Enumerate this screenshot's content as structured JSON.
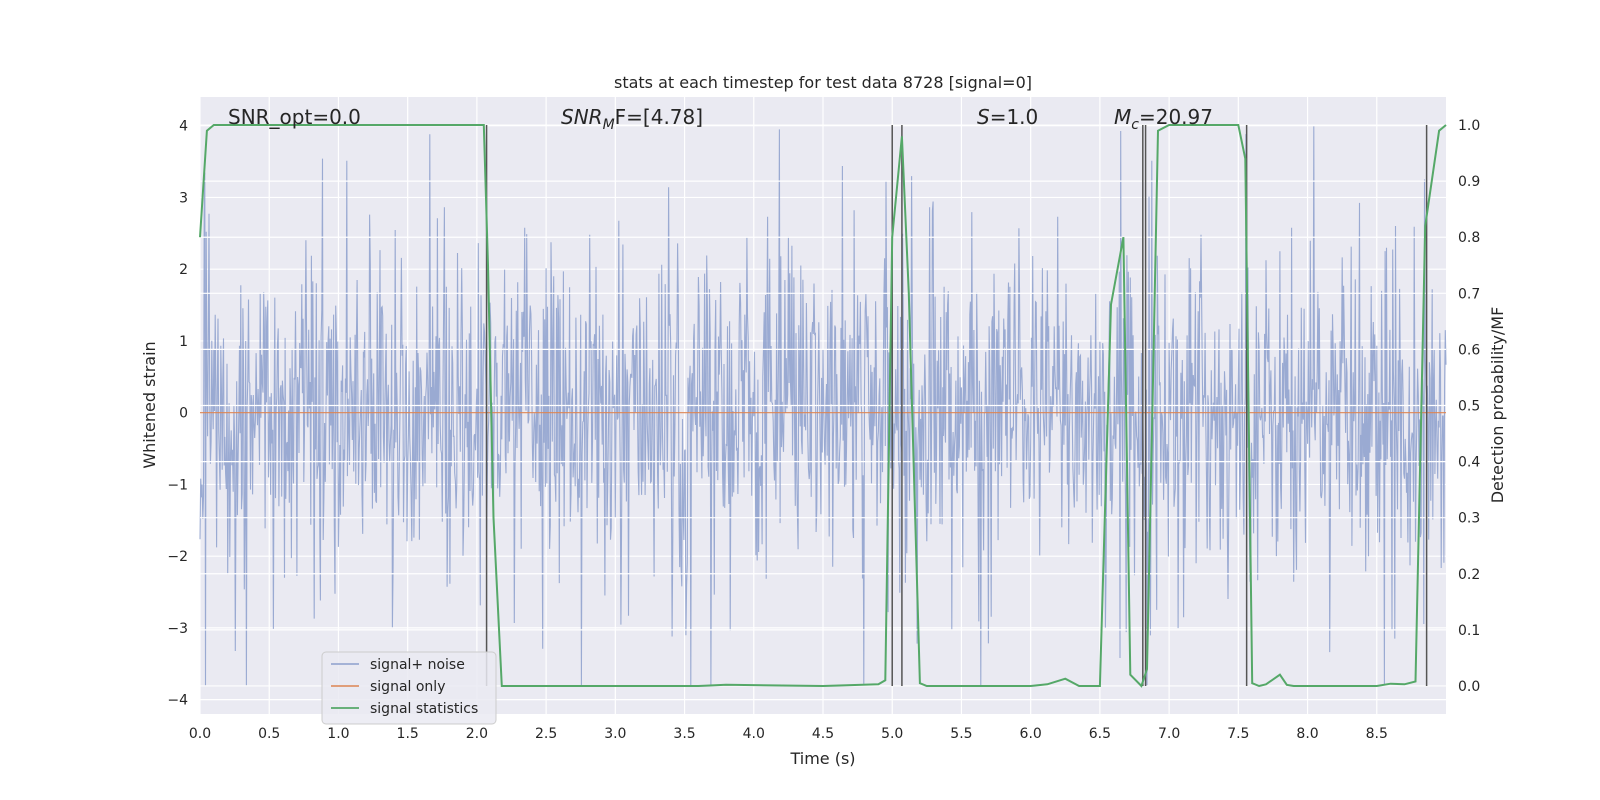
{
  "chart_data": {
    "type": "line",
    "title": "stats at each timestep for test data 8728 [signal=0]",
    "xlabel": "Time (s)",
    "ylabel": "Whitened strain",
    "y2label": "Detection probability/MF",
    "xlim": [
      0.0,
      9.0
    ],
    "ylim": [
      -4.2,
      4.4
    ],
    "y2lim": [
      -0.05,
      1.05
    ],
    "xticks": [
      "0.0",
      "0.5",
      "1.0",
      "1.5",
      "2.0",
      "2.5",
      "3.0",
      "3.5",
      "4.0",
      "4.5",
      "5.0",
      "5.5",
      "6.0",
      "6.5",
      "7.0",
      "7.5",
      "8.0",
      "8.5"
    ],
    "yticks": [
      "4",
      "3",
      "2",
      "1",
      "0",
      "−1",
      "−2",
      "−3",
      "−4"
    ],
    "y2ticks": [
      "1.0",
      "0.9",
      "0.8",
      "0.7",
      "0.6",
      "0.5",
      "0.4",
      "0.3",
      "0.2",
      "0.1",
      "0.0"
    ],
    "grid": true,
    "legend": {
      "position": "lower-left",
      "entries": [
        "signal+ noise",
        "signal only",
        "signal statistics"
      ]
    },
    "colors": {
      "noise": "#8c9fcc",
      "signal": "#dd8452",
      "stats": "#55a868",
      "vline": "#555555",
      "background": "#eaeaf2"
    },
    "annotations": {
      "snr_opt": "SNR_opt=0.0",
      "snr_mf_main": "SNR",
      "snr_mf_sub": "M",
      "snr_mf_rest": "F=[4.78]",
      "s_main": "S",
      "s_rest": "=1.0",
      "mc_main": "M",
      "mc_sub": "c",
      "mc_rest": "=20.97"
    },
    "series": [
      {
        "name": "signal statistics",
        "axis": "right",
        "x": [
          0.0,
          0.05,
          0.1,
          0.2,
          0.3,
          0.5,
          1.0,
          1.5,
          2.0,
          2.05,
          2.08,
          2.12,
          2.18,
          2.3,
          3.0,
          3.6,
          3.8,
          4.5,
          4.9,
          4.95,
          5.0,
          5.07,
          5.12,
          5.2,
          5.25,
          5.5,
          6.0,
          6.12,
          6.25,
          6.35,
          6.5,
          6.58,
          6.67,
          6.72,
          6.8,
          6.84,
          6.88,
          6.92,
          7.0,
          7.5,
          7.55,
          7.6,
          7.65,
          7.7,
          7.8,
          7.85,
          7.9,
          8.5,
          8.6,
          8.7,
          8.78,
          8.85,
          8.95,
          9.0
        ],
        "y": [
          0.8,
          0.99,
          1.0,
          1.0,
          1.0,
          1.0,
          1.0,
          1.0,
          1.0,
          1.0,
          0.75,
          0.3,
          0.0,
          0.0,
          0.0,
          0.0,
          0.002,
          0.0,
          0.003,
          0.01,
          0.8,
          0.98,
          0.7,
          0.005,
          0.0,
          0.0,
          0.0,
          0.003,
          0.013,
          0.0,
          0.0,
          0.68,
          0.8,
          0.02,
          0.0,
          0.03,
          0.5,
          0.99,
          1.0,
          1.0,
          0.94,
          0.005,
          0.0,
          0.003,
          0.02,
          0.002,
          0.0,
          0.0,
          0.004,
          0.003,
          0.008,
          0.82,
          0.99,
          1.0
        ]
      },
      {
        "name": "signal only",
        "axis": "left",
        "x": [
          0.0,
          9.0
        ],
        "y": [
          0.0,
          0.0
        ]
      },
      {
        "name": "signal+ noise",
        "axis": "left",
        "x": [
          0.0,
          9.0
        ],
        "y_envelope_low": -2.4,
        "y_envelope_high": 2.4,
        "y_spike_low": -3.8,
        "y_spike_high": 4.0,
        "sample_rate": 200
      }
    ],
    "vlines_x": [
      2.07,
      5.0,
      5.07,
      6.81,
      6.83,
      7.56,
      8.86
    ]
  }
}
